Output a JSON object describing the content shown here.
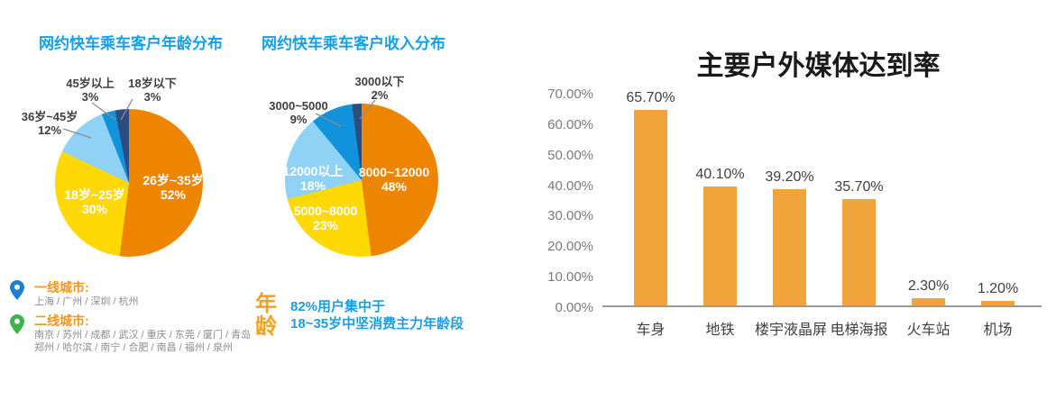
{
  "page": {
    "background": "#ffffff"
  },
  "chart_data": [
    {
      "type": "pie",
      "title": "网约快车乘车客户年龄分布",
      "labels": [
        "26岁~35岁",
        "18岁~25岁",
        "36岁~45岁",
        "45岁以上",
        "18岁以下"
      ],
      "values": [
        52,
        30,
        12,
        3,
        3
      ],
      "display_pcts": [
        "52%",
        "30%",
        "12%",
        "3%",
        "3%"
      ],
      "colors": [
        "#EE8500",
        "#FFD903",
        "#8FD2F6",
        "#1193DC",
        "#2E4C7E"
      ],
      "start_angle_deg": 0,
      "direction": "clockwise",
      "legend_position": "none"
    },
    {
      "type": "pie",
      "title": "网约快车乘车客户收入分布",
      "labels": [
        "8000~12000",
        "5000~8000",
        "12000以上",
        "3000~5000",
        "3000以下"
      ],
      "values": [
        48,
        23,
        18,
        9,
        2
      ],
      "display_pcts": [
        "48%",
        "23%",
        "18%",
        "9%",
        "2%"
      ],
      "colors": [
        "#EE8500",
        "#FFD903",
        "#8FD2F6",
        "#1193DC",
        "#2E4C7E"
      ],
      "start_angle_deg": 0,
      "direction": "clockwise",
      "legend_position": "none"
    },
    {
      "type": "bar",
      "title": "主要户外媒体达到率",
      "categories": [
        "车身",
        "地铁",
        "楼宇液晶屏",
        "电梯海报",
        "火车站",
        "机场"
      ],
      "values": [
        65.7,
        40.1,
        39.2,
        35.7,
        2.3,
        1.2
      ],
      "value_labels": [
        "65.70%",
        "40.10%",
        "39.20%",
        "35.70%",
        "2.30%",
        "1.20%"
      ],
      "y_ticks": [
        "70.00%",
        "60.00%",
        "50.00%",
        "40.00%",
        "30.00%",
        "20.00%",
        "10.00%",
        "0.00%"
      ],
      "ylim": [
        0,
        70
      ],
      "ylabel": "",
      "xlabel": "",
      "grid": false,
      "legend_position": "none",
      "bar_color": "#F1A33C"
    }
  ],
  "cities": {
    "tier1": {
      "label": "一线城市:",
      "list": "上海 / 广州 / 深圳 / 杭州",
      "pin_color": "#1B7FD4"
    },
    "tier2": {
      "label": "二线城市:",
      "list_line1": "南京 / 苏州 / 成都 / 武汉 / 重庆 / 东莞 / 厦门 / 青岛",
      "list_line2": "郑州 / 哈尔滨 / 南宁 / 合肥 / 南昌 / 福州 / 泉州",
      "pin_color": "#3BB54A"
    }
  },
  "age_note": {
    "tag_char1": "年",
    "tag_char2": "龄",
    "line1": "82%用户集中于",
    "line2": "18~35岁中坚消费主力年龄段"
  }
}
